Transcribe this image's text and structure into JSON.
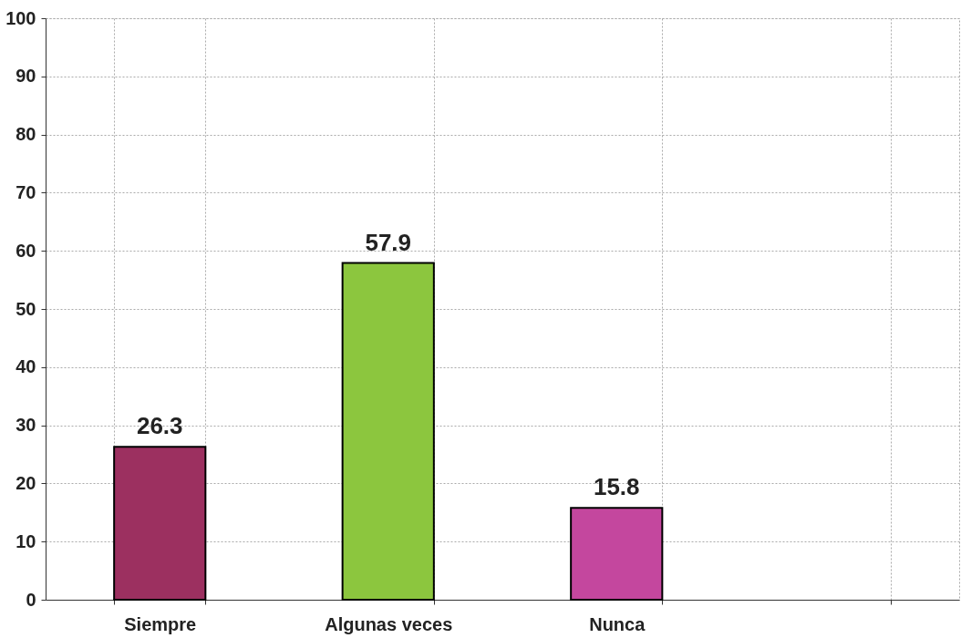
{
  "chart_data": {
    "type": "bar",
    "categories": [
      "Siempre",
      "Algunas veces",
      "Nunca",
      null
    ],
    "values": [
      26.3,
      57.9,
      15.8,
      null
    ],
    "colors": [
      "#9c3060",
      "#8cc63e",
      "#c4479e",
      "#888888"
    ],
    "ylim": [
      0,
      100
    ],
    "yticks": [
      0,
      10,
      20,
      30,
      40,
      50,
      60,
      70,
      80,
      90,
      100
    ],
    "grid": true,
    "data_labels": true
  }
}
